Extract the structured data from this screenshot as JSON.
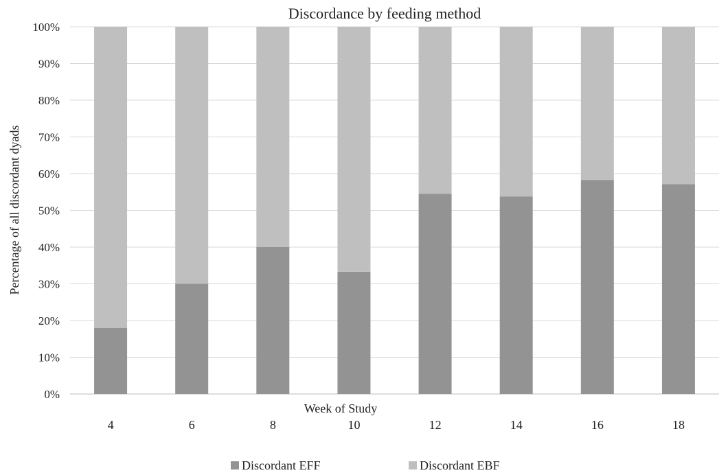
{
  "chart_data": {
    "type": "bar",
    "stacked": true,
    "title": "Discordance by feeding method",
    "xlabel": "Week of Study",
    "ylabel": "Percentage of all discordant dyads",
    "categories": [
      "4",
      "6",
      "8",
      "10",
      "12",
      "14",
      "16",
      "18"
    ],
    "series": [
      {
        "name": "Discordant EFF",
        "color": "#939393",
        "values": [
          18,
          30,
          40,
          33.3,
          54.5,
          53.8,
          58.3,
          57.1
        ]
      },
      {
        "name": "Discordant EBF",
        "color": "#bfbfbf",
        "values": [
          82,
          70,
          60,
          66.7,
          45.5,
          46.2,
          41.7,
          42.9
        ]
      }
    ],
    "ylim": [
      0,
      100
    ],
    "yticks": [
      "0%",
      "10%",
      "20%",
      "30%",
      "40%",
      "50%",
      "60%",
      "70%",
      "80%",
      "90%",
      "100%"
    ],
    "grid": true,
    "legend_position": "bottom"
  }
}
